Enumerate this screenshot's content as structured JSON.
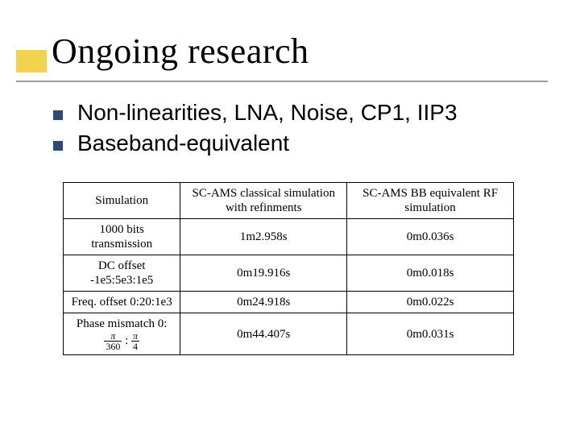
{
  "slide": {
    "title": "Ongoing research",
    "accent_color": "#f2d34e",
    "rule_color": "#9a9a97",
    "bullet_color": "#2e4a7a",
    "background": "#ffffff"
  },
  "bullets": [
    "Non-linearities, LNA, Noise, CP1, IIP3",
    "Baseband-equivalent"
  ],
  "table": {
    "header": {
      "c0": "Simulation",
      "c1": "SC-AMS classical simulation with refinments",
      "c2": "SC-AMS BB equivalent RF simulation"
    },
    "rows": [
      {
        "label": "1000 bits transmission",
        "c1": "1m2.958s",
        "c2": "0m0.036s"
      },
      {
        "label": "DC offset -1e5:5e3:1e5",
        "c1": "0m19.916s",
        "c2": "0m0.018s"
      },
      {
        "label": "Freq. offset 0:20:1e3",
        "c1": "0m24.918s",
        "c2": "0m0.022s"
      },
      {
        "label_prefix": "Phase mismatch 0:",
        "frac1": {
          "n": "π",
          "d": "360"
        },
        "sep": ":",
        "frac2": {
          "n": "π",
          "d": "4"
        },
        "c1": "0m44.407s",
        "c2": "0m0.031s"
      }
    ],
    "font_family": "Times New Roman",
    "border_color": "#000000",
    "cell_fontsize": 15
  }
}
